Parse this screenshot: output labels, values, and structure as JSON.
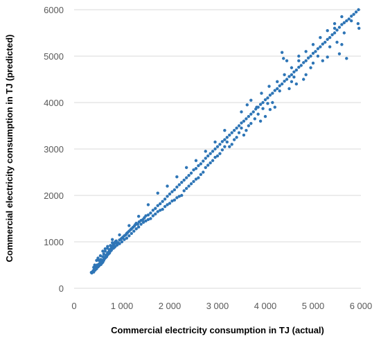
{
  "chart_data": {
    "type": "scatter",
    "title": "",
    "xlabel": "Commercial electricity consumption in TJ (actual)",
    "ylabel": "Commercial electricity consumption in TJ (predicted)",
    "xlim": [
      0,
      6000
    ],
    "ylim": [
      0,
      6000
    ],
    "x_ticks": [
      0,
      1000,
      2000,
      3000,
      4000,
      5000,
      6000
    ],
    "x_tick_labels": [
      "0",
      "1 000",
      "2 000",
      "3 000",
      "4 000",
      "5 000",
      "6 000"
    ],
    "y_ticks": [
      0,
      1000,
      2000,
      3000,
      4000,
      5000,
      6000
    ],
    "y_tick_labels": [
      "0",
      "1000",
      "2000",
      "3000",
      "4000",
      "5000",
      "6000"
    ],
    "grid": "horizontal",
    "legend": "none",
    "marker_color": "#2E75B6",
    "points": [
      [
        360,
        340
      ],
      [
        390,
        360
      ],
      [
        410,
        350
      ],
      [
        440,
        390
      ],
      [
        470,
        420
      ],
      [
        450,
        440
      ],
      [
        500,
        460
      ],
      [
        520,
        480
      ],
      [
        480,
        500
      ],
      [
        540,
        520
      ],
      [
        560,
        510
      ],
      [
        580,
        540
      ],
      [
        600,
        560
      ],
      [
        520,
        600
      ],
      [
        560,
        620
      ],
      [
        620,
        600
      ],
      [
        640,
        650
      ],
      [
        600,
        680
      ],
      [
        660,
        700
      ],
      [
        680,
        720
      ],
      [
        620,
        740
      ],
      [
        700,
        760
      ],
      [
        720,
        780
      ],
      [
        650,
        800
      ],
      [
        740,
        820
      ],
      [
        760,
        840
      ],
      [
        700,
        860
      ],
      [
        780,
        880
      ],
      [
        800,
        900
      ],
      [
        760,
        920
      ],
      [
        820,
        940
      ],
      [
        840,
        960
      ],
      [
        800,
        980
      ],
      [
        860,
        1000
      ],
      [
        880,
        1020
      ],
      [
        920,
        980
      ],
      [
        950,
        1040
      ],
      [
        980,
        1060
      ],
      [
        1000,
        1080
      ],
      [
        1020,
        1100
      ],
      [
        1050,
        1130
      ],
      [
        1080,
        1150
      ],
      [
        1100,
        1180
      ],
      [
        1120,
        1200
      ],
      [
        1150,
        1230
      ],
      [
        1180,
        1260
      ],
      [
        1200,
        1280
      ],
      [
        1230,
        1310
      ],
      [
        1260,
        1340
      ],
      [
        1280,
        1370
      ],
      [
        1300,
        1400
      ],
      [
        1330,
        1380
      ],
      [
        1360,
        1430
      ],
      [
        1400,
        1460
      ],
      [
        1440,
        1480
      ],
      [
        1470,
        1520
      ],
      [
        1500,
        1560
      ],
      [
        1550,
        1580
      ],
      [
        1600,
        1620
      ],
      [
        1650,
        1680
      ],
      [
        1700,
        1720
      ],
      [
        1750,
        1780
      ],
      [
        1800,
        1820
      ],
      [
        1850,
        1870
      ],
      [
        1900,
        1920
      ],
      [
        1950,
        1980
      ],
      [
        2000,
        2030
      ],
      [
        2050,
        2080
      ],
      [
        2100,
        2120
      ],
      [
        2150,
        2180
      ],
      [
        2200,
        2230
      ],
      [
        2250,
        2280
      ],
      [
        2300,
        2330
      ],
      [
        2350,
        2380
      ],
      [
        2400,
        2430
      ],
      [
        2450,
        2480
      ],
      [
        2500,
        2550
      ],
      [
        2550,
        2580
      ],
      [
        2600,
        2640
      ],
      [
        2650,
        2680
      ],
      [
        2700,
        2740
      ],
      [
        2750,
        2800
      ],
      [
        2800,
        2850
      ],
      [
        2850,
        2900
      ],
      [
        2900,
        2950
      ],
      [
        2950,
        3000
      ],
      [
        3000,
        3050
      ],
      [
        3050,
        3100
      ],
      [
        3100,
        3160
      ],
      [
        3150,
        3200
      ],
      [
        3200,
        3250
      ],
      [
        3250,
        3300
      ],
      [
        3300,
        3350
      ],
      [
        3350,
        3400
      ],
      [
        3400,
        3450
      ],
      [
        3450,
        3500
      ],
      [
        3500,
        3560
      ],
      [
        3550,
        3600
      ],
      [
        3600,
        3650
      ],
      [
        3650,
        3700
      ],
      [
        3700,
        3750
      ],
      [
        3750,
        3800
      ],
      [
        3800,
        3860
      ],
      [
        3850,
        3900
      ],
      [
        3900,
        3960
      ],
      [
        3950,
        4000
      ],
      [
        4000,
        4060
      ],
      [
        4050,
        4100
      ],
      [
        4100,
        4160
      ],
      [
        4150,
        4200
      ],
      [
        4200,
        4260
      ],
      [
        4250,
        4300
      ],
      [
        4300,
        4360
      ],
      [
        4350,
        4400
      ],
      [
        4400,
        4460
      ],
      [
        4450,
        4500
      ],
      [
        4500,
        4560
      ],
      [
        4550,
        4600
      ],
      [
        4600,
        4660
      ],
      [
        4650,
        4700
      ],
      [
        4700,
        4760
      ],
      [
        4750,
        4800
      ],
      [
        4800,
        4860
      ],
      [
        4850,
        4900
      ],
      [
        4900,
        4960
      ],
      [
        4950,
        5000
      ],
      [
        5000,
        5060
      ],
      [
        5050,
        5100
      ],
      [
        5100,
        5160
      ],
      [
        5150,
        5200
      ],
      [
        5200,
        5260
      ],
      [
        5250,
        5300
      ],
      [
        5300,
        5360
      ],
      [
        5350,
        5400
      ],
      [
        5400,
        5460
      ],
      [
        5450,
        5500
      ],
      [
        5500,
        5560
      ],
      [
        5550,
        5620
      ],
      [
        5600,
        5680
      ],
      [
        5650,
        5720
      ],
      [
        5700,
        5760
      ],
      [
        5750,
        5800
      ],
      [
        5800,
        5860
      ],
      [
        5850,
        5900
      ],
      [
        5900,
        5950
      ],
      [
        5950,
        6000
      ],
      [
        5960,
        5600
      ],
      [
        5940,
        5700
      ],
      [
        5800,
        5760
      ],
      [
        5650,
        5500
      ],
      [
        5600,
        5250
      ],
      [
        5550,
        5050
      ],
      [
        5700,
        4950
      ],
      [
        5500,
        5300
      ],
      [
        5450,
        5600
      ],
      [
        5350,
        5200
      ],
      [
        5300,
        4980
      ],
      [
        5200,
        4900
      ],
      [
        5100,
        5000
      ],
      [
        5000,
        4850
      ],
      [
        4950,
        4750
      ],
      [
        4850,
        4600
      ],
      [
        4800,
        4500
      ],
      [
        4700,
        5000
      ],
      [
        4650,
        4400
      ],
      [
        4600,
        4550
      ],
      [
        4550,
        4450
      ],
      [
        4500,
        4300
      ],
      [
        4450,
        4900
      ],
      [
        4380,
        4950
      ],
      [
        4350,
        5080
      ],
      [
        4300,
        4250
      ],
      [
        4200,
        3900
      ],
      [
        4150,
        4000
      ],
      [
        4100,
        3850
      ],
      [
        4050,
        3980
      ],
      [
        4000,
        3700
      ],
      [
        3950,
        3870
      ],
      [
        3900,
        3600
      ],
      [
        3850,
        3750
      ],
      [
        3780,
        3650
      ],
      [
        3700,
        3550
      ],
      [
        3650,
        3500
      ],
      [
        3600,
        3400
      ],
      [
        3550,
        3300
      ],
      [
        3500,
        3450
      ],
      [
        3450,
        3350
      ],
      [
        3400,
        3250
      ],
      [
        3350,
        3200
      ],
      [
        3300,
        3100
      ],
      [
        3250,
        3050
      ],
      [
        3200,
        3150
      ],
      [
        3150,
        3050
      ],
      [
        3100,
        2980
      ],
      [
        3050,
        2900
      ],
      [
        3000,
        2850
      ],
      [
        2950,
        2820
      ],
      [
        2900,
        2750
      ],
      [
        2850,
        2700
      ],
      [
        2800,
        2650
      ],
      [
        2750,
        2600
      ],
      [
        2700,
        2500
      ],
      [
        2650,
        2450
      ],
      [
        2600,
        2380
      ],
      [
        2550,
        2350
      ],
      [
        2500,
        2300
      ],
      [
        2450,
        2250
      ],
      [
        2400,
        2200
      ],
      [
        2350,
        2150
      ],
      [
        2300,
        2100
      ],
      [
        2250,
        2000
      ],
      [
        2200,
        1980
      ],
      [
        2150,
        1950
      ],
      [
        2100,
        1900
      ],
      [
        2050,
        1880
      ],
      [
        2000,
        1830
      ],
      [
        1950,
        1800
      ],
      [
        1900,
        1760
      ],
      [
        1850,
        1700
      ],
      [
        1800,
        1680
      ],
      [
        1750,
        1650
      ],
      [
        1700,
        1600
      ],
      [
        1650,
        1560
      ],
      [
        1600,
        1500
      ],
      [
        1550,
        1480
      ],
      [
        1500,
        1450
      ],
      [
        1450,
        1420
      ],
      [
        1400,
        1380
      ],
      [
        1350,
        1320
      ],
      [
        1300,
        1280
      ],
      [
        1250,
        1230
      ],
      [
        1200,
        1180
      ],
      [
        1150,
        1130
      ],
      [
        1100,
        1080
      ],
      [
        1050,
        1050
      ],
      [
        1000,
        1000
      ],
      [
        950,
        960
      ],
      [
        900,
        930
      ],
      [
        880,
        980
      ],
      [
        860,
        900
      ],
      [
        840,
        880
      ],
      [
        820,
        860
      ],
      [
        780,
        820
      ],
      [
        760,
        800
      ],
      [
        740,
        760
      ],
      [
        720,
        740
      ],
      [
        700,
        720
      ],
      [
        680,
        680
      ],
      [
        660,
        660
      ],
      [
        640,
        640
      ],
      [
        620,
        620
      ],
      [
        600,
        600
      ],
      [
        580,
        580
      ],
      [
        560,
        560
      ],
      [
        540,
        540
      ],
      [
        520,
        520
      ],
      [
        500,
        500
      ],
      [
        480,
        470
      ],
      [
        460,
        450
      ],
      [
        440,
        420
      ],
      [
        420,
        400
      ],
      [
        400,
        380
      ],
      [
        380,
        350
      ],
      [
        370,
        330
      ],
      [
        3620,
        3950
      ],
      [
        3700,
        4050
      ],
      [
        3500,
        3800
      ],
      [
        3820,
        3900
      ],
      [
        3920,
        4200
      ],
      [
        4080,
        4350
      ],
      [
        4250,
        4450
      ],
      [
        4400,
        4600
      ],
      [
        4550,
        4750
      ],
      [
        4700,
        4900
      ],
      [
        4850,
        5100
      ],
      [
        5000,
        5250
      ],
      [
        5150,
        5400
      ],
      [
        5300,
        5550
      ],
      [
        5450,
        5700
      ],
      [
        5600,
        5850
      ],
      [
        3150,
        3400
      ],
      [
        2950,
        3150
      ],
      [
        2750,
        2950
      ],
      [
        2550,
        2750
      ],
      [
        2350,
        2600
      ],
      [
        2150,
        2400
      ],
      [
        1950,
        2200
      ],
      [
        1750,
        2050
      ],
      [
        1550,
        1800
      ],
      [
        1350,
        1550
      ],
      [
        1150,
        1350
      ],
      [
        950,
        1150
      ],
      [
        800,
        1050
      ],
      [
        700,
        900
      ],
      [
        650,
        850
      ],
      [
        600,
        800
      ],
      [
        550,
        700
      ],
      [
        500,
        650
      ],
      [
        470,
        600
      ],
      [
        430,
        500
      ],
      [
        410,
        450
      ]
    ]
  }
}
